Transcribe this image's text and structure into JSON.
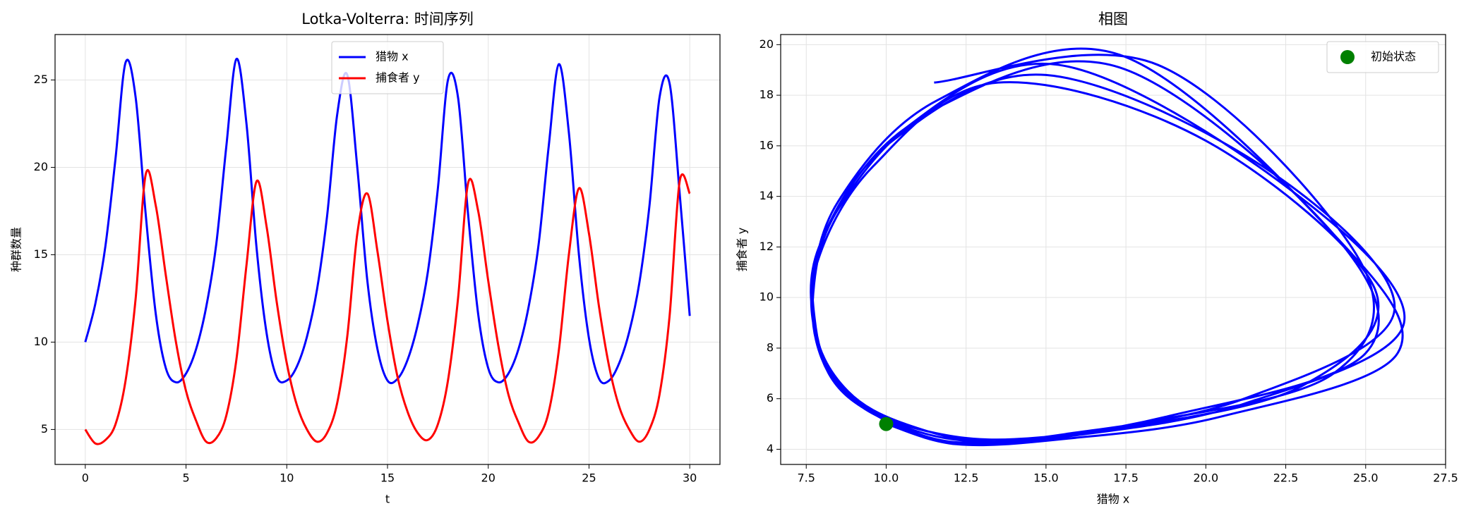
{
  "chart_data": [
    {
      "type": "line",
      "title": "Lotka-Volterra: 时间序列",
      "xlabel": "t",
      "ylabel": "种群数量",
      "x": [
        0,
        0.5,
        1,
        1.5,
        2,
        2.5,
        3,
        3.5,
        4,
        4.5,
        5,
        5.5,
        6,
        6.5,
        7,
        7.5,
        8,
        8.5,
        9,
        9.5,
        10,
        10.5,
        11,
        11.5,
        12,
        12.5,
        13,
        13.5,
        14,
        14.5,
        15,
        15.5,
        16,
        16.5,
        17,
        17.5,
        18,
        18.5,
        19,
        19.5,
        20,
        20.5,
        21,
        21.5,
        22,
        22.5,
        23,
        23.5,
        24,
        24.5,
        25,
        25.5,
        26,
        26.5,
        27,
        27.5,
        28,
        28.5,
        29,
        29.5,
        30
      ],
      "series": [
        {
          "name": "猎物 x",
          "color": "#0000ff",
          "values": [
            10,
            12.2,
            15.5,
            20.5,
            26.0,
            24.0,
            17.3,
            11.6,
            8.5,
            7.7,
            8.2,
            9.6,
            12.0,
            15.6,
            21.2,
            26.2,
            22.5,
            15.4,
            10.5,
            8.0,
            7.8,
            8.6,
            10.3,
            13.0,
            17.2,
            23.0,
            25.3,
            20.0,
            13.5,
            9.6,
            7.8,
            7.9,
            9.0,
            11.0,
            14.0,
            18.8,
            25.0,
            24.0,
            17.3,
            11.6,
            8.5,
            7.7,
            8.2,
            9.6,
            12.0,
            15.6,
            21.2,
            25.9,
            22.0,
            15.0,
            10.2,
            7.9,
            7.8,
            8.8,
            10.6,
            13.4,
            17.8,
            24.0,
            24.8,
            18.5,
            11.5
          ]
        },
        {
          "name": "捕食者 y",
          "color": "#ff0000",
          "values": [
            5.0,
            4.2,
            4.4,
            5.3,
            7.8,
            12.5,
            19.6,
            17.8,
            13.8,
            10.0,
            7.2,
            5.5,
            4.3,
            4.5,
            5.8,
            9.0,
            14.4,
            19.2,
            16.6,
            12.3,
            8.8,
            6.4,
            5.0,
            4.3,
            4.8,
            6.5,
            10.3,
            16.2,
            18.5,
            15.2,
            11.2,
            8.0,
            6.0,
            4.8,
            4.4,
            5.3,
            7.8,
            12.5,
            19.1,
            17.5,
            13.5,
            9.8,
            7.0,
            5.4,
            4.3,
            4.6,
            6.0,
            9.5,
            15.0,
            18.8,
            16.2,
            12.0,
            8.6,
            6.3,
            5.0,
            4.3,
            5.0,
            7.0,
            11.5,
            19.2,
            18.5
          ]
        }
      ],
      "xlim": [
        -1.5,
        31.5
      ],
      "xticks": [
        0,
        5,
        10,
        15,
        20,
        25,
        30
      ],
      "ylim": [
        3,
        27.6
      ],
      "yticks": [
        5,
        10,
        15,
        20,
        25
      ],
      "grid": true,
      "legend": "upper center"
    },
    {
      "type": "phase",
      "title": "相图",
      "xlabel": "猎物 x",
      "ylabel": "捕食者 y",
      "series": [
        {
          "name": "初始状态",
          "color": "#008000",
          "x": [
            10
          ],
          "values": [
            5
          ]
        }
      ],
      "xlim": [
        6.7,
        27.5
      ],
      "xticks": [
        7.5,
        {
          "value": 10,
          "label": "10.0"
        },
        12.5,
        {
          "value": 15,
          "label": "15.0"
        },
        17.5,
        {
          "value": 20,
          "label": "20.0"
        },
        22.5,
        {
          "value": 25,
          "label": "25.0"
        },
        27.5
      ],
      "ylim": [
        3.4,
        20.4
      ],
      "yticks": [
        4,
        6,
        8,
        10,
        12,
        14,
        16,
        18,
        20
      ],
      "grid": true,
      "legend": "upper right"
    }
  ]
}
